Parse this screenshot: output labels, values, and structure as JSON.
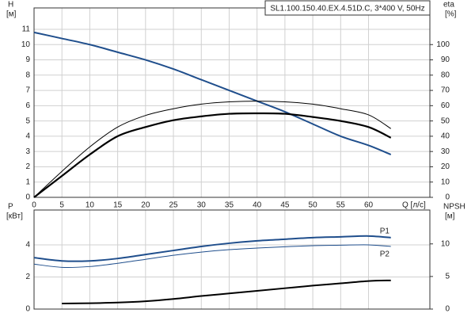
{
  "chart_data": [
    {
      "type": "line",
      "title": "SL1.100.150.40.EX.4.51D.C, 3*400 V, 50Hz",
      "x_label": "Q [л/с]",
      "y_label": "H",
      "y_unit": "[м]",
      "y2_label": "eta",
      "y2_unit": "[%]",
      "x": [
        0,
        5,
        10,
        15,
        20,
        25,
        30,
        35,
        40,
        45,
        50,
        55,
        60,
        64
      ],
      "xlim": [
        0,
        71
      ],
      "xticks": [
        0,
        5,
        10,
        15,
        20,
        25,
        30,
        35,
        40,
        45,
        50,
        55,
        60
      ],
      "ylim": [
        0,
        12.4
      ],
      "yticks": [
        0,
        1,
        2,
        3,
        4,
        5,
        6,
        7,
        8,
        9,
        10,
        11
      ],
      "y2lim": [
        0,
        124
      ],
      "y2ticks": [
        0,
        10,
        20,
        30,
        40,
        50,
        60,
        70,
        80,
        90,
        100
      ],
      "grid": true,
      "series": [
        {
          "color": "#1f4e8c",
          "width": 2,
          "values": [
            10.8,
            10.4,
            10.0,
            9.5,
            9.0,
            8.4,
            7.7,
            7.0,
            6.3,
            5.6,
            4.8,
            4.0,
            3.4,
            2.8
          ]
        },
        {
          "color": "#000000",
          "width": 1,
          "axis": "y2",
          "values": [
            0,
            17,
            33,
            46,
            53.6,
            58,
            61,
            62.5,
            63,
            62.5,
            61,
            58,
            54,
            45
          ]
        },
        {
          "color": "#000000",
          "width": 2.2,
          "axis": "y2",
          "values": [
            0,
            14,
            28,
            40,
            46,
            50.5,
            53,
            54.7,
            55,
            54.7,
            52.6,
            50,
            46,
            39
          ]
        }
      ]
    },
    {
      "type": "line",
      "y_label": "P",
      "y_unit": "[кВт]",
      "y2_label": "NPSH",
      "y2_unit": "[м]",
      "x": [
        0,
        5,
        10,
        15,
        20,
        25,
        30,
        35,
        40,
        45,
        50,
        55,
        60,
        64
      ],
      "xlim": [
        0,
        71
      ],
      "xticks": [
        0,
        5,
        10,
        15,
        20,
        25,
        30,
        35,
        40,
        45,
        50,
        55,
        60
      ],
      "ylim": [
        0,
        6.17
      ],
      "yticks": [
        0,
        2,
        4
      ],
      "y2lim": [
        0,
        15.2
      ],
      "y2ticks": [
        0,
        5,
        10
      ],
      "grid": true,
      "series": [
        {
          "name": "P1",
          "color": "#1f4e8c",
          "width": 2,
          "values": [
            3.2,
            3.0,
            3.0,
            3.15,
            3.4,
            3.65,
            3.9,
            4.1,
            4.25,
            4.35,
            4.45,
            4.5,
            4.55,
            4.45
          ]
        },
        {
          "name": "P2",
          "color": "#1f4e8c",
          "width": 1,
          "values": [
            2.8,
            2.6,
            2.65,
            2.85,
            3.1,
            3.35,
            3.55,
            3.7,
            3.8,
            3.88,
            3.95,
            3.98,
            4.0,
            3.9
          ]
        },
        {
          "color": "#000000",
          "width": 2,
          "axis": "y2",
          "values": [
            null,
            0.85,
            0.9,
            1.0,
            1.2,
            1.55,
            2.0,
            2.4,
            2.8,
            3.2,
            3.6,
            3.95,
            4.3,
            4.4
          ]
        }
      ]
    }
  ]
}
